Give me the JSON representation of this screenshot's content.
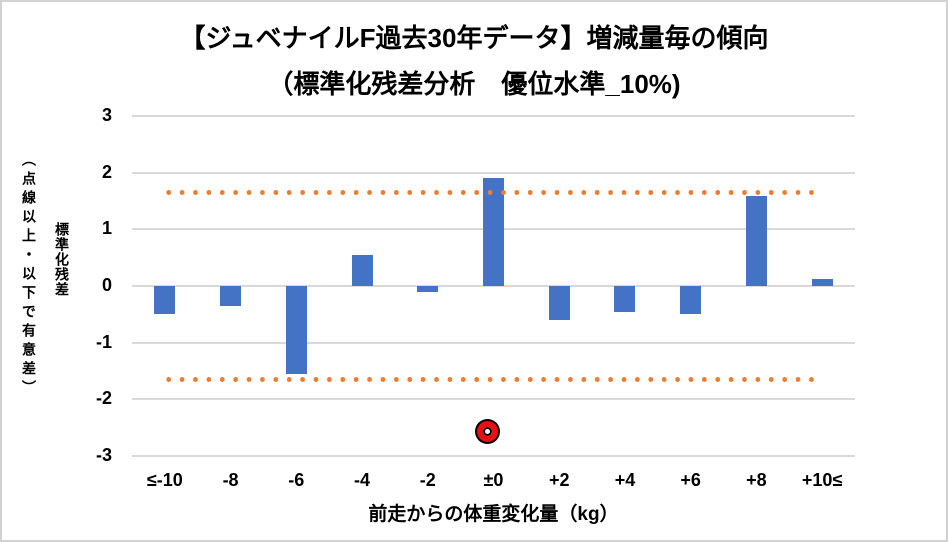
{
  "title": {
    "line1": "【ジュベナイルF過去30年データ】増減量毎の傾向",
    "line2": "（標準化残差分析　優位水準_10%)"
  },
  "y_axis": {
    "title": "標準化残差",
    "subtitle": "（点線以上・以下で有意差）",
    "tick_labels": [
      "3",
      "2",
      "1",
      "0",
      "-1",
      "-2",
      "-3"
    ]
  },
  "x_axis": {
    "title": "前走からの体重変化量（kg）"
  },
  "chart_data": {
    "type": "bar",
    "title": "【ジュベナイルF過去30年データ】増減量毎の傾向（標準化残差分析　優位水準_10%)",
    "categories": [
      "≤-10",
      "-8",
      "-6",
      "-4",
      "-2",
      "±0",
      "+2",
      "+4",
      "+6",
      "+8",
      "+10≤"
    ],
    "values": [
      -0.5,
      -0.35,
      -1.55,
      0.55,
      -0.1,
      1.9,
      -0.6,
      -0.45,
      -0.5,
      1.58,
      0.12
    ],
    "xlabel": "前走からの体重変化量（kg）",
    "ylabel": "標準化残差（点線以上・以下で有意差）",
    "ylim": [
      -3,
      3
    ],
    "yticks": [
      3,
      2,
      1,
      0,
      -1,
      -2,
      -3
    ],
    "grid": true,
    "legend": "none",
    "bar_color": "#4472C4",
    "gridline_color": "#D9D9D9",
    "threshold": {
      "values": [
        1.645,
        -1.645
      ],
      "style": "dotted",
      "color": "#ED7D31"
    },
    "annotation": {
      "shape": "red-double-circle",
      "fill": "#E81010",
      "outline": "#000000",
      "category": "±0",
      "y": -2.6
    }
  }
}
